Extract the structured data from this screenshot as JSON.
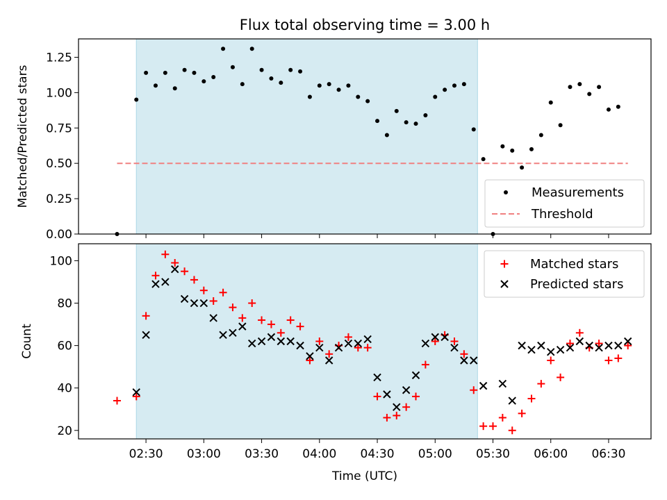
{
  "chart_data": [
    {
      "type": "scatter",
      "title": "Flux total observing time = 3.00 h",
      "xlabel": "",
      "ylabel": "Matched/Predicted stars",
      "ylim": [
        0,
        1.38
      ],
      "yticks": [
        "0.00",
        "0.25",
        "0.50",
        "0.75",
        "1.00",
        "1.25"
      ],
      "shaded_band": {
        "from": "02:25",
        "to": "05:22",
        "color": "#add8e6"
      },
      "threshold": {
        "name": "Threshold",
        "value": 0.5,
        "from": "02:15",
        "to": "06:40",
        "color": "#f08080"
      },
      "legend": {
        "position": "lower right",
        "entries": [
          "Measurements",
          "Threshold"
        ]
      },
      "series": [
        {
          "name": "Measurements",
          "color": "#000000",
          "x": [
            "02:15",
            "02:25",
            "02:30",
            "02:35",
            "02:40",
            "02:45",
            "02:50",
            "02:55",
            "03:00",
            "03:05",
            "03:10",
            "03:15",
            "03:20",
            "03:25",
            "03:30",
            "03:35",
            "03:40",
            "03:45",
            "03:50",
            "03:55",
            "04:00",
            "04:05",
            "04:10",
            "04:15",
            "04:20",
            "04:25",
            "04:30",
            "04:35",
            "04:40",
            "04:45",
            "04:50",
            "04:55",
            "05:00",
            "05:05",
            "05:10",
            "05:15",
            "05:20",
            "05:25",
            "05:30",
            "05:35",
            "05:40",
            "05:45",
            "05:50",
            "05:55",
            "06:00",
            "06:05",
            "06:10",
            "06:15",
            "06:20",
            "06:25",
            "06:30",
            "06:35"
          ],
          "y": [
            0.0,
            0.95,
            1.14,
            1.05,
            1.14,
            1.03,
            1.16,
            1.14,
            1.08,
            1.11,
            1.31,
            1.18,
            1.06,
            1.31,
            1.16,
            1.1,
            1.07,
            1.16,
            1.15,
            0.97,
            1.05,
            1.06,
            1.02,
            1.05,
            0.97,
            0.94,
            0.8,
            0.7,
            0.87,
            0.79,
            0.78,
            0.84,
            0.97,
            1.02,
            1.05,
            1.06,
            0.74,
            0.53,
            0.0,
            0.62,
            0.59,
            0.47,
            0.6,
            0.7,
            0.93,
            0.77,
            1.04,
            1.06,
            0.99,
            1.04,
            0.88,
            0.9
          ]
        }
      ]
    },
    {
      "type": "scatter",
      "title": "",
      "xlabel": "Time (UTC)",
      "ylabel": "Count",
      "ylim": [
        16,
        108
      ],
      "yticks": [
        "20",
        "40",
        "60",
        "80",
        "100"
      ],
      "xticks": [
        "02:30",
        "03:00",
        "03:30",
        "04:00",
        "04:30",
        "05:00",
        "05:30",
        "06:00",
        "06:30"
      ],
      "shaded_band": {
        "from": "02:25",
        "to": "05:22",
        "color": "#add8e6"
      },
      "legend": {
        "position": "upper right",
        "entries": [
          "Matched stars",
          "Predicted stars"
        ]
      },
      "series": [
        {
          "name": "Matched stars",
          "marker": "+",
          "color": "#ff0000",
          "x": [
            "02:15",
            "02:25",
            "02:30",
            "02:35",
            "02:40",
            "02:45",
            "02:50",
            "02:55",
            "03:00",
            "03:05",
            "03:10",
            "03:15",
            "03:20",
            "03:25",
            "03:30",
            "03:35",
            "03:40",
            "03:45",
            "03:50",
            "03:55",
            "04:00",
            "04:05",
            "04:10",
            "04:15",
            "04:20",
            "04:25",
            "04:30",
            "04:35",
            "04:40",
            "04:45",
            "04:50",
            "04:55",
            "05:00",
            "05:05",
            "05:10",
            "05:15",
            "05:20",
            "05:25",
            "05:30",
            "05:35",
            "05:40",
            "05:45",
            "05:50",
            "05:55",
            "06:00",
            "06:05",
            "06:10",
            "06:15",
            "06:20",
            "06:25",
            "06:30",
            "06:35",
            "06:40"
          ],
          "y": [
            34,
            36,
            74,
            93,
            103,
            99,
            95,
            91,
            86,
            81,
            85,
            78,
            73,
            80,
            72,
            70,
            66,
            72,
            69,
            53,
            62,
            56,
            60,
            64,
            59,
            59,
            36,
            26,
            27,
            31,
            36,
            51,
            62,
            65,
            62,
            56,
            39,
            22,
            22,
            26,
            20,
            28,
            35,
            42,
            53,
            45,
            61,
            66,
            59,
            61,
            53,
            54,
            60
          ]
        },
        {
          "name": "Predicted stars",
          "marker": "x",
          "color": "#000000",
          "x": [
            "02:25",
            "02:30",
            "02:35",
            "02:40",
            "02:45",
            "02:50",
            "02:55",
            "03:00",
            "03:05",
            "03:10",
            "03:15",
            "03:20",
            "03:25",
            "03:30",
            "03:35",
            "03:40",
            "03:45",
            "03:50",
            "03:55",
            "04:00",
            "04:05",
            "04:10",
            "04:15",
            "04:20",
            "04:25",
            "04:30",
            "04:35",
            "04:40",
            "04:45",
            "04:50",
            "04:55",
            "05:00",
            "05:05",
            "05:10",
            "05:15",
            "05:20",
            "05:25",
            "05:35",
            "05:40",
            "05:45",
            "05:50",
            "05:55",
            "06:00",
            "06:05",
            "06:10",
            "06:15",
            "06:20",
            "06:25",
            "06:30",
            "06:35",
            "06:40"
          ],
          "y": [
            38,
            65,
            89,
            90,
            96,
            82,
            80,
            80,
            73,
            65,
            66,
            69,
            61,
            62,
            64,
            62,
            62,
            60,
            55,
            59,
            53,
            59,
            61,
            61,
            63,
            45,
            37,
            31,
            39,
            46,
            61,
            64,
            64,
            59,
            53,
            53,
            41,
            42,
            34,
            60,
            58,
            60,
            57,
            58,
            59,
            62,
            60,
            59,
            60,
            60,
            62
          ]
        }
      ]
    }
  ]
}
